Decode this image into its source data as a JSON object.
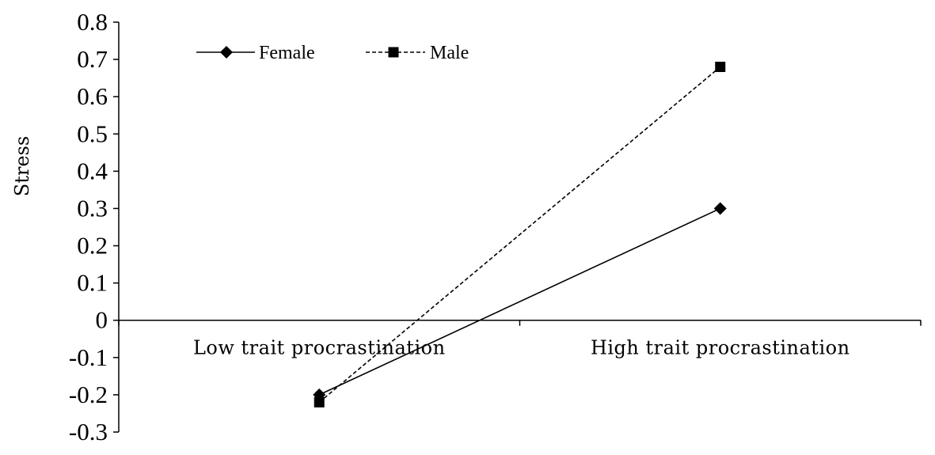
{
  "chart_data": {
    "type": "line",
    "title": "",
    "xlabel": "",
    "ylabel": "Stress",
    "categories": [
      "Low trait procrastination",
      "High trait procrastination"
    ],
    "ylim": [
      -0.3,
      0.8
    ],
    "yticks": [
      0.8,
      0.7,
      0.6,
      0.5,
      0.4,
      0.3,
      0.2,
      0.1,
      0,
      -0.1,
      -0.2,
      -0.3
    ],
    "ytick_labels": [
      "0.8",
      "0.7",
      "0.6",
      "0.5",
      "0.4",
      "0.3",
      "0.2",
      "0.1",
      "0",
      "-0.1",
      "-0.2",
      "-0.3"
    ],
    "grid": false,
    "legend_position": "top-left",
    "series": [
      {
        "name": "Female",
        "values": [
          -0.2,
          0.3
        ],
        "marker": "diamond",
        "line_style": "solid",
        "color": "#000000"
      },
      {
        "name": "Male",
        "values": [
          -0.22,
          0.68
        ],
        "marker": "square",
        "line_style": "dashed",
        "color": "#000000"
      }
    ]
  }
}
